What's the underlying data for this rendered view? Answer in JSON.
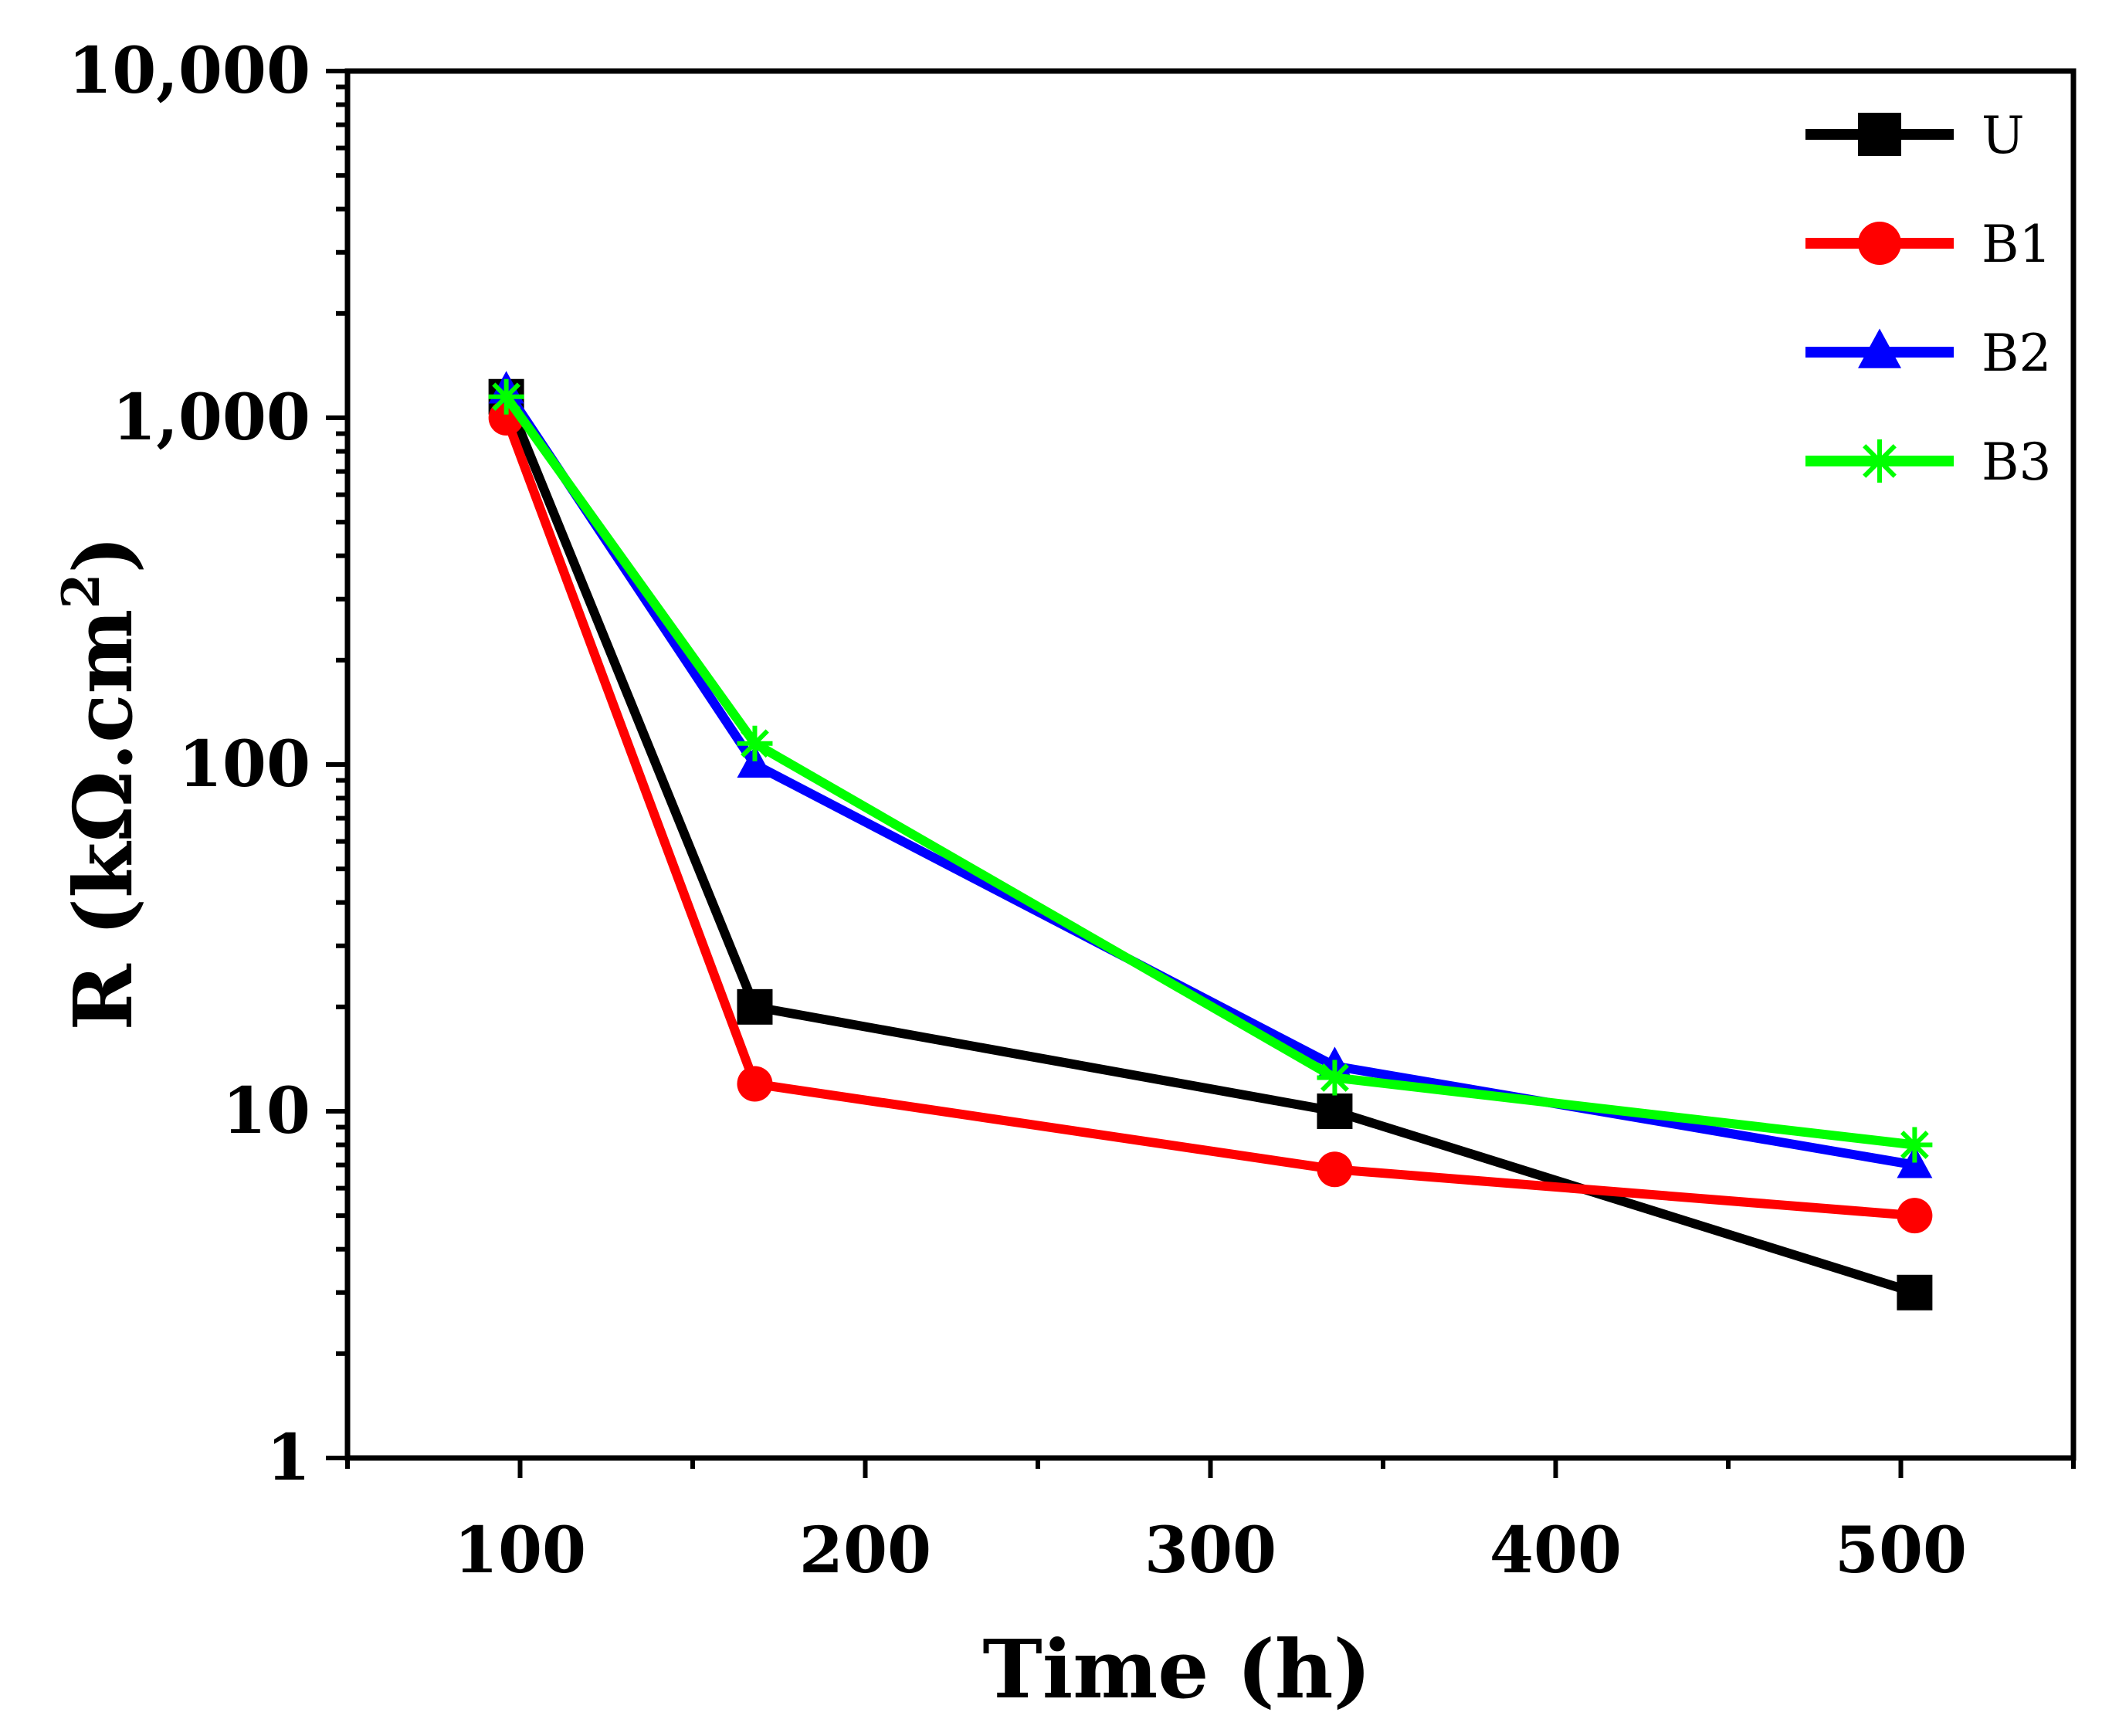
{
  "chart_data": {
    "type": "line",
    "title": "",
    "xlabel": "Time (h)",
    "ylabel_main": "R (kΩ.cm",
    "ylabel_sup": "2",
    "ylabel_close": ")",
    "xlim": [
      50,
      550
    ],
    "ylim": [
      1,
      10000
    ],
    "yscale": "log",
    "x_ticks": [
      100,
      200,
      300,
      400,
      500
    ],
    "x_tick_labels": [
      "100",
      "200",
      "300",
      "400",
      "500"
    ],
    "y_ticks": [
      1,
      10,
      100,
      1000,
      10000
    ],
    "y_tick_labels": [
      "1",
      "10",
      "100",
      "1,000",
      "10,000"
    ],
    "x": [
      96,
      168,
      336,
      504
    ],
    "series": [
      {
        "name": "U",
        "color": "#000000",
        "marker": "square",
        "values": [
          1150,
          20,
          10,
          3
        ]
      },
      {
        "name": "B1",
        "color": "#ff0000",
        "marker": "circle",
        "values": [
          1000,
          12,
          6.8,
          5
        ]
      },
      {
        "name": "B2",
        "color": "#0000ff",
        "marker": "triangle",
        "values": [
          1200,
          100,
          13.5,
          7
        ]
      },
      {
        "name": "B3",
        "color": "#00ff00",
        "marker": "asterisk",
        "values": [
          1150,
          115,
          12.5,
          8
        ]
      }
    ],
    "legend_position": "top-right",
    "grid": false
  }
}
